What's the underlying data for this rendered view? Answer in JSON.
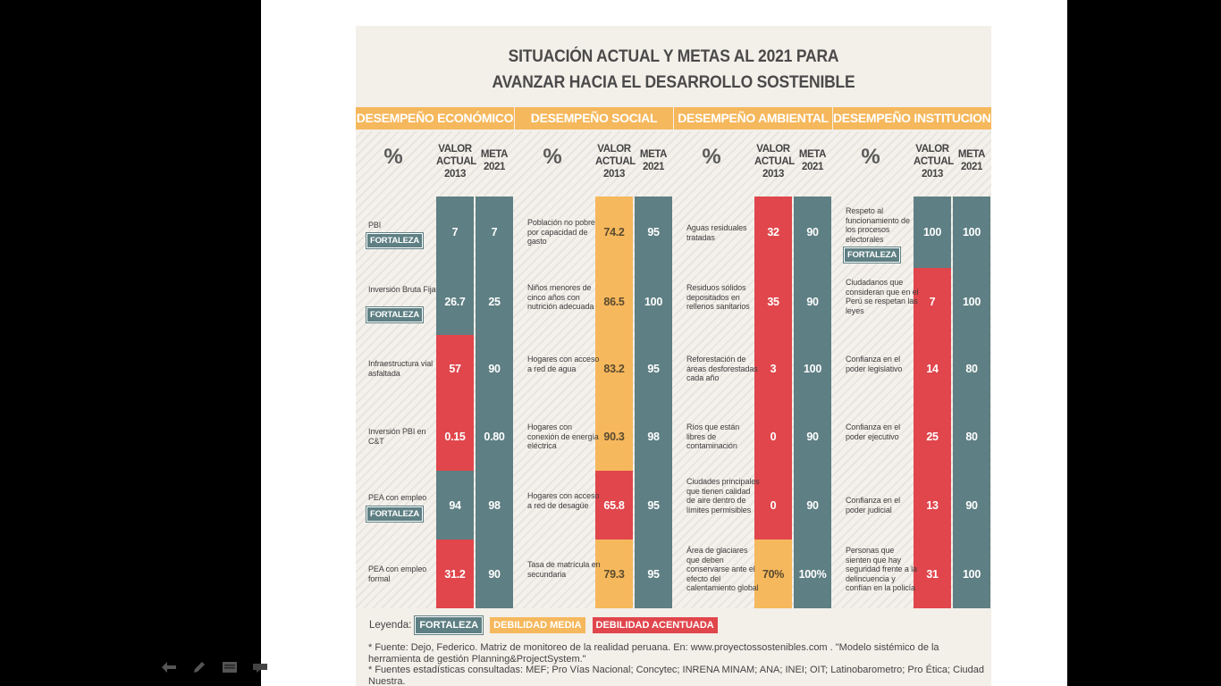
{
  "title": {
    "line1": "SITUACIÓN ACTUAL Y METAS AL 2021 PARA",
    "line2": "AVANZAR HACIA EL DESARROLLO SOSTENIBLE"
  },
  "column_headers": {
    "percent": "%",
    "current": "VALOR ACTUAL 2013",
    "goal": "META 2021"
  },
  "sections": [
    {
      "name": "DESEMPEÑO ECONÓMICO"
    },
    {
      "name": "DESEMPEÑO SOCIAL"
    },
    {
      "name": "DESEMPEÑO AMBIENTAL"
    },
    {
      "name": "DESEMPEÑO INSTITUCIONAL"
    }
  ],
  "badge_text": "FORTALEZA",
  "rows": [
    [
      {
        "label": "PBI",
        "current": "7",
        "goal": "7",
        "status": "fortaleza",
        "badge": true
      },
      {
        "label": "Población no pobre por capacidad de gasto",
        "current": "74.2",
        "goal": "95",
        "status": "media"
      },
      {
        "label": "Aguas residuales tratadas",
        "current": "32",
        "goal": "90",
        "status": "acentuada"
      },
      {
        "label": "Respeto al funcionamiento de los procesos electorales",
        "current": "100",
        "goal": "100",
        "status": "fortaleza",
        "badge": true
      }
    ],
    [
      {
        "label": "Inversión Bruta Fija",
        "current": "26.7",
        "goal": "25",
        "status": "fortaleza",
        "badge": true
      },
      {
        "label": "Niños menores de cinco años con nutrición adecuada",
        "current": "86.5",
        "goal": "100",
        "status": "media"
      },
      {
        "label": "Residuos sólidos depositados en rellenos sanitarios",
        "current": "35",
        "goal": "90",
        "status": "acentuada"
      },
      {
        "label": "Ciudadanos que consideran que en el Perú se respetan las leyes",
        "current": "7",
        "goal": "100",
        "status": "acentuada"
      }
    ],
    [
      {
        "label": "Infraestructura vial asfaltada",
        "current": "57",
        "goal": "90",
        "status": "acentuada"
      },
      {
        "label": "Hogares con acceso a red de agua",
        "current": "83.2",
        "goal": "95",
        "status": "media"
      },
      {
        "label": "Reforestación de áreas desforestadas cada año",
        "current": "3",
        "goal": "100",
        "status": "acentuada"
      },
      {
        "label": "Confianza en el poder legislativo",
        "current": "14",
        "goal": "80",
        "status": "acentuada"
      }
    ],
    [
      {
        "label": "Inversión PBI en C&T",
        "current": "0.15",
        "goal": "0.80",
        "status": "acentuada"
      },
      {
        "label": "Hogares con conexión de energía eléctrica",
        "current": "90.3",
        "goal": "98",
        "status": "media"
      },
      {
        "label": "Ríos que están libres de contaminación",
        "current": "0",
        "goal": "90",
        "status": "acentuada"
      },
      {
        "label": "Confianza en el poder ejecutivo",
        "current": "25",
        "goal": "80",
        "status": "acentuada"
      }
    ],
    [
      {
        "label": "PEA con empleo",
        "current": "94",
        "goal": "98",
        "status": "fortaleza",
        "badge": true
      },
      {
        "label": "Hogares con acceso a red de desagüe",
        "current": "65.8",
        "goal": "95",
        "status": "acentuada"
      },
      {
        "label": "Ciudades principales que tienen calidad de aire dentro de límites permisibles",
        "current": "0",
        "goal": "90",
        "status": "acentuada"
      },
      {
        "label": "Confianza en el poder judicial",
        "current": "13",
        "goal": "90",
        "status": "acentuada"
      }
    ],
    [
      {
        "label": "PEA con empleo formal",
        "current": "31.2",
        "goal": "90",
        "status": "acentuada"
      },
      {
        "label": "Tasa de matrícula en secundaria",
        "current": "79.3",
        "goal": "95",
        "status": "media"
      },
      {
        "label": "Área de glaciares que deben conservarse ante el efecto del calentamiento global",
        "current": "70%",
        "goal": "100%",
        "status": "media"
      },
      {
        "label": "Personas que sienten que hay seguridad frente a la delincuencia y confían en la policía",
        "current": "31",
        "goal": "100",
        "status": "acentuada"
      }
    ]
  ],
  "legend": {
    "prefix": "Leyenda:",
    "fortaleza": "FORTALEZA",
    "media": "DEBILIDAD MEDIA",
    "acentuada": "DEBILIDAD ACENTUADA"
  },
  "footnotes": [
    "* Fuente: Dejo, Federico. Matriz de monitoreo de la realidad peruana. En: www.proyectossostenibles.com . \"Modelo sistémico de la herramienta de gestión Planning&ProjectSystem.\"",
    "* Fuentes estadísticas consultadas: MEF; Pro Vías Nacional; Concytec; INRENA MINAM; ANA; INEI; OIT; Latinobarometro; Pro Ética; Ciudad Nuestra."
  ],
  "colors": {
    "fortaleza": "#5e7f83",
    "media": "#f6b85c",
    "acentuada": "#e0464c",
    "header": "#f6b85c"
  },
  "toolbar": [
    "back-arrow-icon",
    "pen-icon",
    "slides-icon",
    "menu-icon"
  ]
}
